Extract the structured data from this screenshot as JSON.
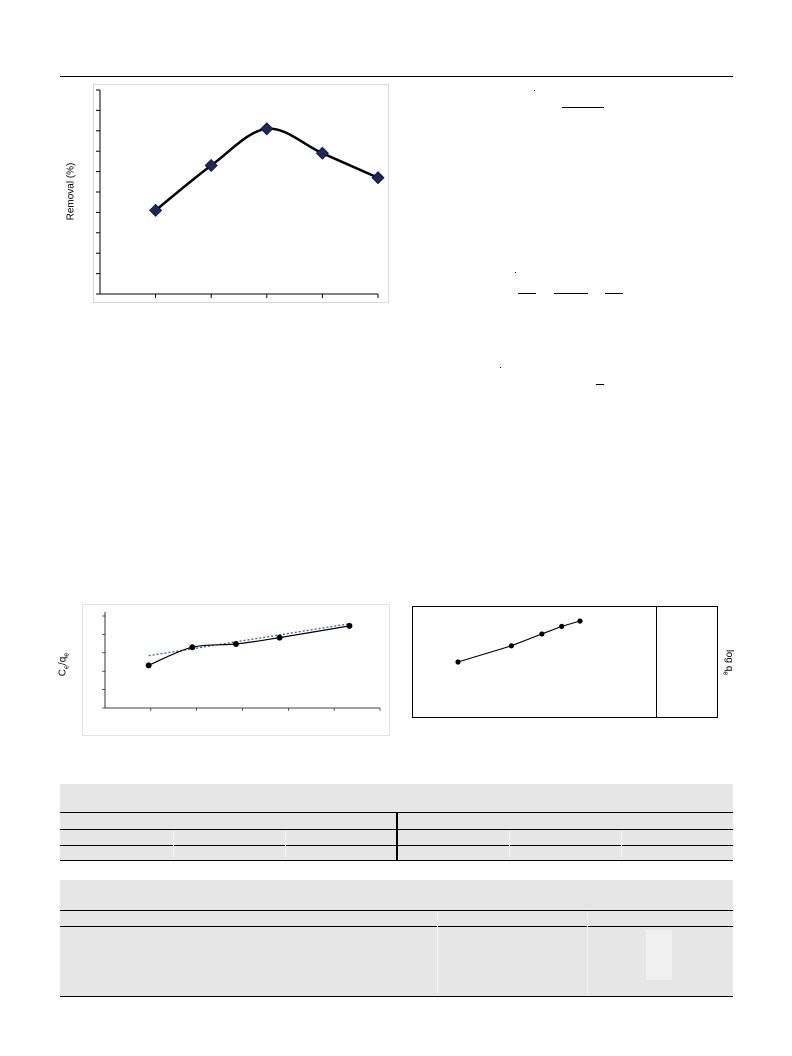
{
  "chart_data": [
    {
      "type": "line",
      "ylabel": "Removal (%)",
      "xlabel": "",
      "x": [
        1,
        2,
        3,
        4,
        5
      ],
      "y": [
        41,
        63,
        81,
        69,
        57
      ],
      "xlim": [
        0,
        5
      ],
      "ylim": [
        0,
        100
      ],
      "y_ticks": 10,
      "marker": "diamond",
      "colors": {
        "marker": "#1b2a5c",
        "line": "#000000"
      }
    },
    {
      "type": "line",
      "ylabel": "Ce/qe",
      "ylabel_main": "C",
      "ylabel_sub1": "e",
      "ylabel_mid": "/q",
      "ylabel_sub2": "e",
      "x": [
        1,
        2,
        3,
        4,
        5.6
      ],
      "y": [
        2.0,
        2.85,
        3.0,
        3.3,
        3.85
      ],
      "trend_start": 2.45,
      "trend_end": 3.95,
      "ylim": [
        0,
        4.5
      ],
      "colors": {
        "marker": "#000000",
        "line": "#000000",
        "trend": "#3f5fa8"
      }
    },
    {
      "type": "line",
      "ylabel": "log qe",
      "ylabel_main": "log q",
      "ylabel_sub": "e",
      "x": [
        0.2,
        0.55,
        0.75,
        0.88,
        1.0
      ],
      "y": [
        0.5,
        0.65,
        0.76,
        0.83,
        0.88
      ],
      "colors": {
        "marker": "#000000",
        "line": "#000000"
      }
    }
  ],
  "tables": {
    "table1": {
      "rows": 3,
      "cols": 6
    },
    "table2": {
      "rows": 2,
      "cols": 3
    }
  }
}
